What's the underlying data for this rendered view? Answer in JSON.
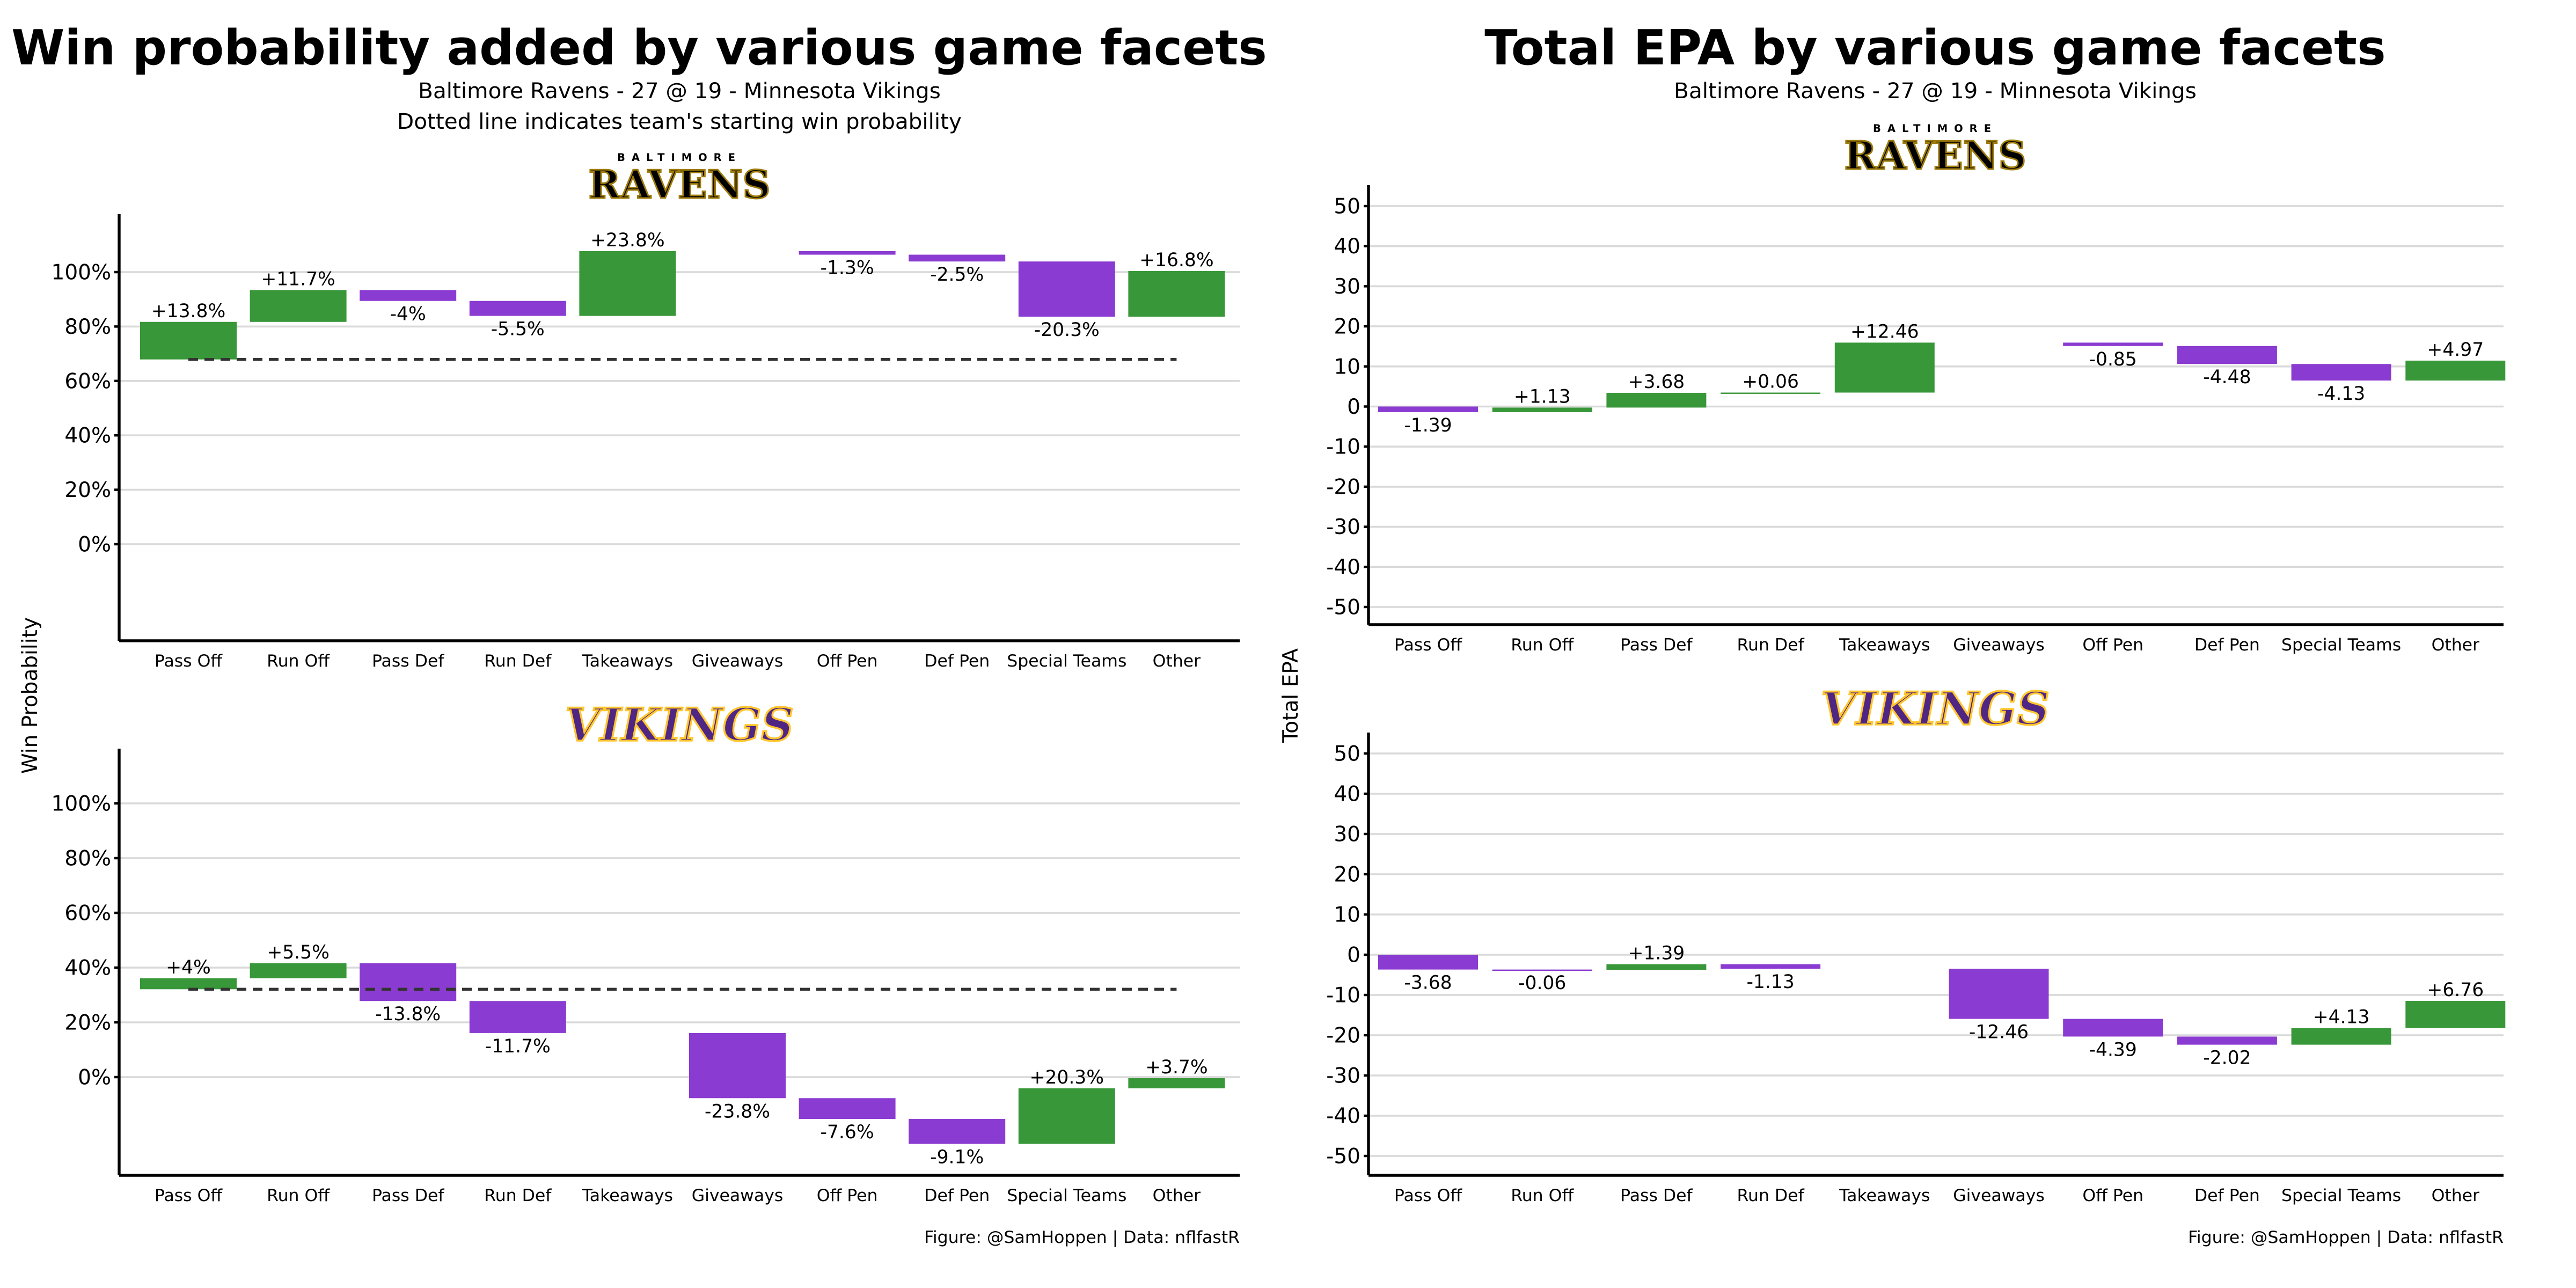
{
  "colors": {
    "positive": "#389738",
    "negative": "#8a3bd1",
    "grid": "#d9d9d9",
    "baseline": "#333333"
  },
  "left": {
    "title": "Win probability added by various game facets",
    "subtitle1": "Baltimore Ravens - 27 @ 19 - Minnesota Vikings",
    "subtitle2": "Dotted line indicates team's starting win probability",
    "ylabel": "Win Probability",
    "caption": "Figure: @SamHoppen | Data: nflfastR"
  },
  "right": {
    "title": "Total EPA by various game facets",
    "subtitle1": "Baltimore Ravens - 27 @ 19 - Minnesota Vikings",
    "ylabel": "Total EPA",
    "caption": "Figure: @SamHoppen | Data: nflfastR"
  },
  "logos": {
    "ravens": {
      "top": "BALTIMORE",
      "main": "RAVENS"
    },
    "vikings": {
      "main": "VIKINGS"
    }
  },
  "chart_data": [
    {
      "type": "bar",
      "subtype": "waterfall",
      "team": "Baltimore Ravens",
      "metric": "win_probability",
      "categories": [
        "Pass Off",
        "Run Off",
        "Pass Def",
        "Run Def",
        "Takeaways",
        "Giveaways",
        "Off Pen",
        "Def Pen",
        "Special Teams",
        "Other"
      ],
      "start": 67.9,
      "values": [
        13.8,
        11.7,
        -4,
        -5.5,
        23.8,
        null,
        -1.3,
        -2.5,
        -20.3,
        16.8
      ],
      "labels": [
        "+13.8%",
        "+11.7%",
        "-4%",
        "-5.5%",
        "+23.8%",
        null,
        "-1.3%",
        "-2.5%",
        "-20.3%",
        "+16.8%"
      ],
      "yticks": [
        0,
        20,
        40,
        60,
        80,
        100
      ],
      "ytick_labels": [
        "0%",
        "20%",
        "40%",
        "60%",
        "80%",
        "100%"
      ],
      "ylim": [
        -35,
        120
      ],
      "grid": true,
      "show_baseline": true
    },
    {
      "type": "bar",
      "subtype": "waterfall",
      "team": "Minnesota Vikings",
      "metric": "win_probability",
      "categories": [
        "Pass Off",
        "Run Off",
        "Pass Def",
        "Run Def",
        "Takeaways",
        "Giveaways",
        "Off Pen",
        "Def Pen",
        "Special Teams",
        "Other"
      ],
      "start": 32.1,
      "values": [
        4,
        5.5,
        -13.8,
        -11.7,
        null,
        -23.8,
        -7.6,
        -9.1,
        20.3,
        3.7
      ],
      "labels": [
        "+4%",
        "+5.5%",
        "-13.8%",
        "-11.7%",
        null,
        "-23.8%",
        "-7.6%",
        "-9.1%",
        "+20.3%",
        "+3.7%"
      ],
      "yticks": [
        0,
        20,
        40,
        60,
        80,
        100
      ],
      "ytick_labels": [
        "0%",
        "20%",
        "40%",
        "60%",
        "80%",
        "100%"
      ],
      "ylim": [
        -35,
        120
      ],
      "grid": true,
      "show_baseline": true
    },
    {
      "type": "bar",
      "subtype": "waterfall",
      "team": "Baltimore Ravens",
      "metric": "total_epa",
      "categories": [
        "Pass Off",
        "Run Off",
        "Pass Def",
        "Run Def",
        "Takeaways",
        "Giveaways",
        "Off Pen",
        "Def Pen",
        "Special Teams",
        "Other"
      ],
      "start": 0,
      "values": [
        -1.39,
        1.13,
        3.68,
        0.06,
        12.46,
        null,
        -0.85,
        -4.48,
        -4.13,
        4.97
      ],
      "labels": [
        "-1.39",
        "+1.13",
        "+3.68",
        "+0.06",
        "+12.46",
        null,
        "-0.85",
        "-4.48",
        "-4.13",
        "+4.97"
      ],
      "yticks": [
        -50,
        -40,
        -30,
        -20,
        -10,
        0,
        10,
        20,
        30,
        40,
        50
      ],
      "ytick_labels": [
        "-50",
        "-40",
        "-30",
        "-20",
        "-10",
        "0",
        "10",
        "20",
        "30",
        "40",
        "50"
      ],
      "ylim": [
        -55,
        55
      ],
      "grid": true,
      "show_baseline": false
    },
    {
      "type": "bar",
      "subtype": "waterfall",
      "team": "Minnesota Vikings",
      "metric": "total_epa",
      "categories": [
        "Pass Off",
        "Run Off",
        "Pass Def",
        "Run Def",
        "Takeaways",
        "Giveaways",
        "Off Pen",
        "Def Pen",
        "Special Teams",
        "Other"
      ],
      "start": 0,
      "values": [
        -3.68,
        -0.06,
        1.39,
        -1.13,
        null,
        -12.46,
        -4.39,
        -2.02,
        4.13,
        6.76
      ],
      "labels": [
        "-3.68",
        "-0.06",
        "+1.39",
        "-1.13",
        null,
        "-12.46",
        "-4.39",
        "-2.02",
        "+4.13",
        "+6.76"
      ],
      "yticks": [
        -50,
        -40,
        -30,
        -20,
        -10,
        0,
        10,
        20,
        30,
        40,
        50
      ],
      "ytick_labels": [
        "-50",
        "-40",
        "-30",
        "-20",
        "-10",
        "0",
        "10",
        "20",
        "30",
        "40",
        "50"
      ],
      "ylim": [
        -55,
        55
      ],
      "grid": true,
      "show_baseline": false
    }
  ]
}
